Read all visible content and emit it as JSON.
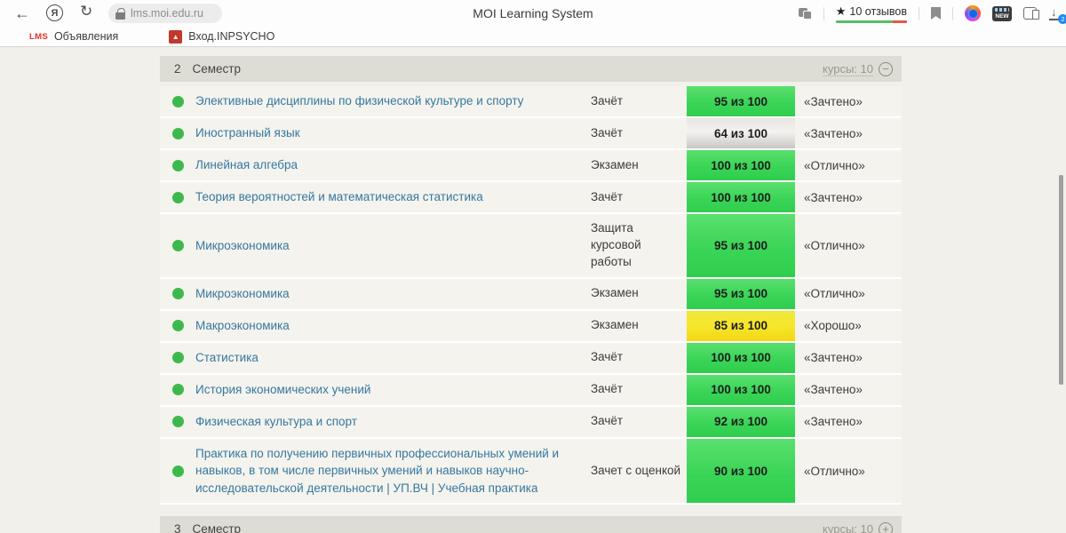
{
  "icons": {
    "back": "←",
    "reload": "↻",
    "yandex": "Я",
    "star": "★",
    "download_arrow": "↓",
    "minus": "−",
    "plus": "+",
    "inpsycho_glyph": "▲"
  },
  "browser": {
    "url": "lms.moi.edu.ru",
    "page_title": "MOI Learning System",
    "rating_label": "10 отзывов",
    "new_badge": "NEW",
    "download_count": "2",
    "bookmarks": {
      "first_icon": "LMS",
      "first_label": "Объявления",
      "second_label": "Вход.INPSYCHO"
    }
  },
  "page": {
    "semester2": {
      "number": "2",
      "word": "Семестр",
      "courses_link": "курсы: 10"
    },
    "semester3": {
      "number": "3",
      "word": "Семестр",
      "courses_link": "курсы: 10"
    },
    "rows": [
      {
        "name": "Элективные дисциплины по физической культуре и спорту",
        "exam": "Зачёт",
        "score": "95 из 100",
        "score_color": "green",
        "grade": "«Зачтено»"
      },
      {
        "name": "Иностранный язык",
        "exam": "Зачёт",
        "score": "64 из 100",
        "score_color": "gray",
        "grade": "«Зачтено»"
      },
      {
        "name": "Линейная алгебра",
        "exam": "Экзамен",
        "score": "100 из 100",
        "score_color": "green",
        "grade": "«Отлично»"
      },
      {
        "name": "Теория вероятностей и математическая статистика",
        "exam": "Зачёт",
        "score": "100 из 100",
        "score_color": "green",
        "grade": "«Зачтено»"
      },
      {
        "name": "Микроэкономика",
        "exam": "Защита курсовой работы",
        "score": "95 из 100",
        "score_color": "green",
        "grade": "«Отлично»"
      },
      {
        "name": "Микроэкономика",
        "exam": "Экзамен",
        "score": "95 из 100",
        "score_color": "green",
        "grade": "«Отлично»"
      },
      {
        "name": "Макроэкономика",
        "exam": "Экзамен",
        "score": "85 из 100",
        "score_color": "yellow",
        "grade": "«Хорошо»"
      },
      {
        "name": "Статистика",
        "exam": "Зачёт",
        "score": "100 из 100",
        "score_color": "green",
        "grade": "«Зачтено»"
      },
      {
        "name": "История экономических учений",
        "exam": "Зачёт",
        "score": "100 из 100",
        "score_color": "green",
        "grade": "«Зачтено»"
      },
      {
        "name": "Физическая культура и спорт",
        "exam": "Зачёт",
        "score": "92 из 100",
        "score_color": "green",
        "grade": "«Зачтено»"
      },
      {
        "name": "Практика по получению первичных профессиональных умений и навыков, в том числе первичных умений и навыков научно-исследовательской деятельности | УП.ВЧ | Учебная практика",
        "exam": "Зачет с оценкой",
        "score": "90 из 100",
        "score_color": "green",
        "grade": "«Отлично»"
      }
    ]
  },
  "colors": {
    "page_background": "#f2f0eb",
    "band_background": "#deddd5",
    "row_background": "#f4f3ee",
    "score_green": "#3ad557",
    "score_yellow": "#f6e62c",
    "score_gray": "#e7e6e3",
    "status_dot_green": "#3cb94c",
    "link_blue": "#36789e",
    "rating_green": "#58bd68",
    "rating_red": "#e4574e",
    "download_badge_blue": "#1e88f7"
  }
}
